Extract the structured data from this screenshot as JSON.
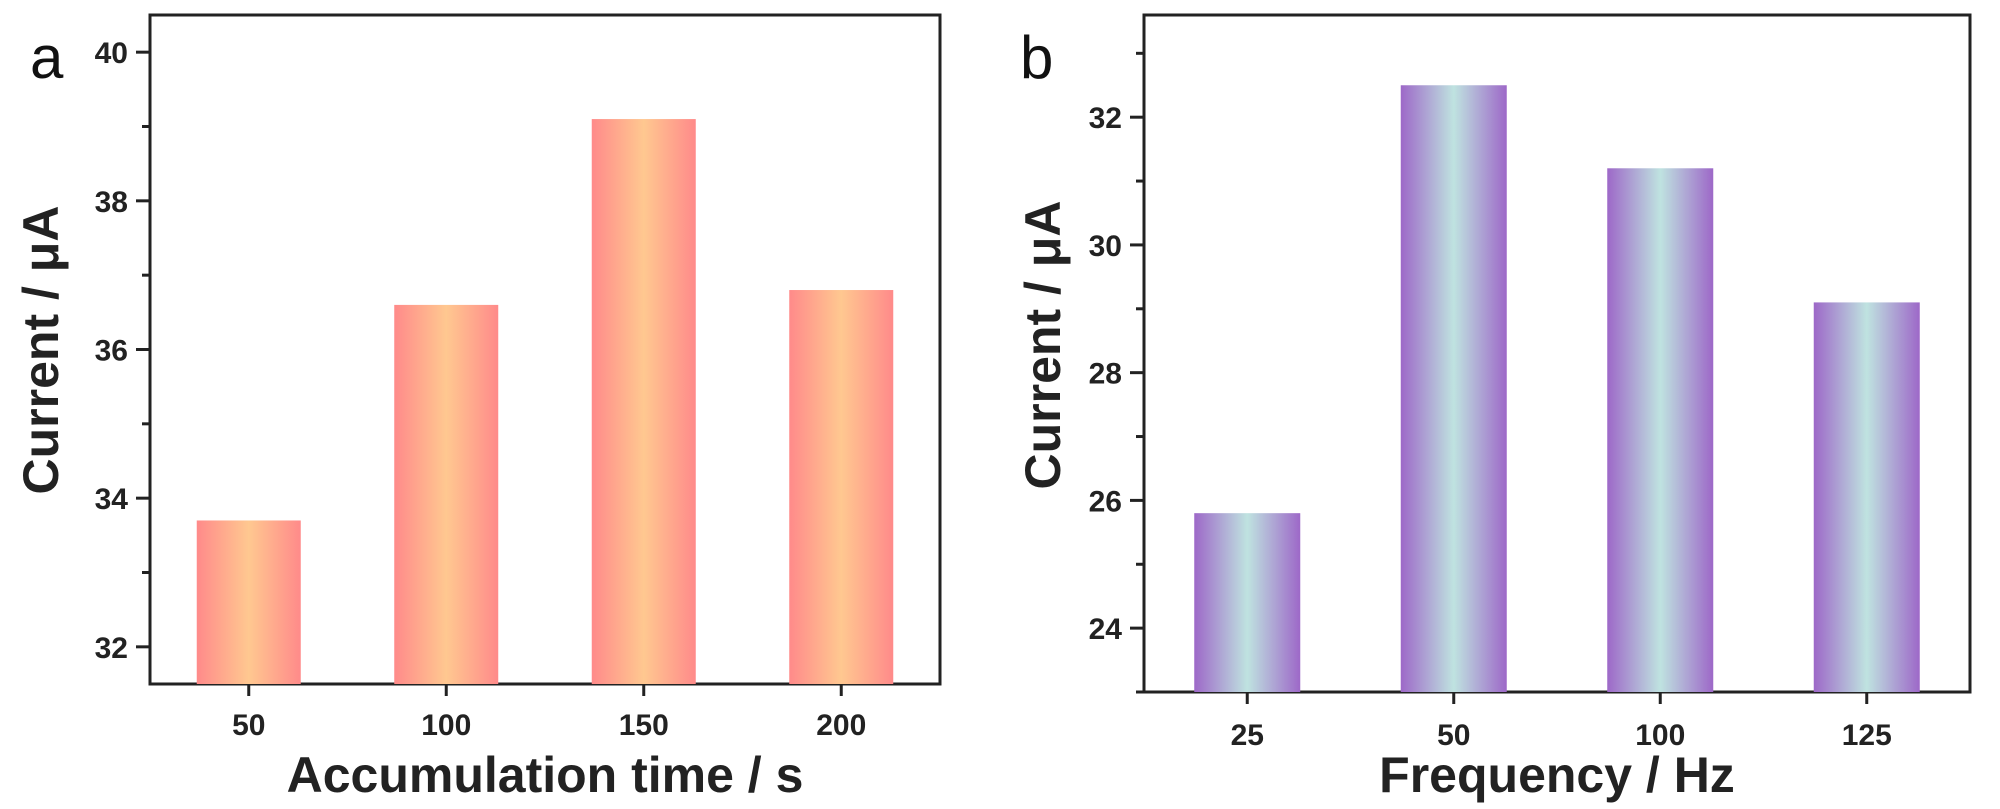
{
  "chart_data": [
    {
      "type": "bar",
      "panel": "a",
      "categories": [
        "50",
        "100",
        "150",
        "200"
      ],
      "values": [
        33.7,
        36.6,
        39.1,
        36.8
      ],
      "title": "",
      "xlabel": "Accumulation time / s",
      "ylabel": "Current / μA",
      "ylim": [
        31.5,
        40.5
      ],
      "yticks": [
        32,
        34,
        36,
        38,
        40
      ],
      "bar_colors": {
        "edge": "#ff8a8a",
        "center": "#ffc890"
      }
    },
    {
      "type": "bar",
      "panel": "b",
      "categories": [
        "25",
        "50",
        "100",
        "125"
      ],
      "values": [
        25.8,
        32.5,
        31.2,
        29.1
      ],
      "title": "",
      "xlabel": "Frequency / Hz",
      "ylabel": "Current / μA",
      "ylim": [
        23.0,
        33.6
      ],
      "yticks": [
        24,
        26,
        28,
        30,
        32
      ],
      "bar_colors": {
        "edge": "#9d68c8",
        "center": "#bfe3e0"
      }
    }
  ]
}
